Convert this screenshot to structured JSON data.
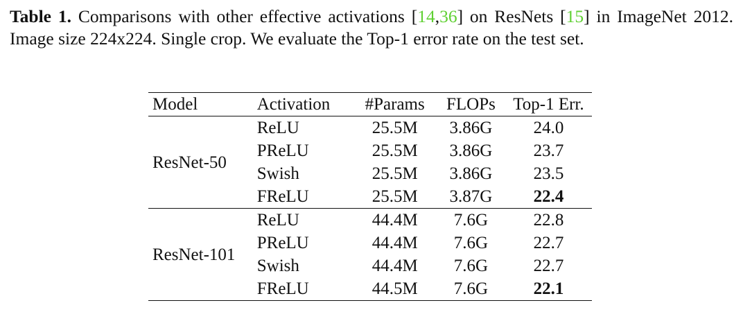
{
  "caption": {
    "label": "Table 1.",
    "text_1": " Comparisons with other effective activations [",
    "cite_a": "14",
    "cite_sep": ",",
    "cite_b": "36",
    "text_2": "] on ResNets [",
    "cite_c": "15",
    "text_3": "] in ImageNet 2012. Image size 224x224. Single crop. We evaluate the Top-1 error rate on the test set."
  },
  "table": {
    "headers": [
      "Model",
      "Activation",
      "#Params",
      "FLOPs",
      "Top-1 Err."
    ],
    "groups": [
      {
        "model": "ResNet-50",
        "rows": [
          {
            "activation": "ReLU",
            "params": "25.5M",
            "flops": "3.86G",
            "err": "24.0",
            "bold": false
          },
          {
            "activation": "PReLU",
            "params": "25.5M",
            "flops": "3.86G",
            "err": "23.7",
            "bold": false
          },
          {
            "activation": "Swish",
            "params": "25.5M",
            "flops": "3.86G",
            "err": "23.5",
            "bold": false
          },
          {
            "activation": "FReLU",
            "params": "25.5M",
            "flops": "3.87G",
            "err": "22.4",
            "bold": true
          }
        ]
      },
      {
        "model": "ResNet-101",
        "rows": [
          {
            "activation": "ReLU",
            "params": "44.4M",
            "flops": "7.6G",
            "err": "22.8",
            "bold": false
          },
          {
            "activation": "PReLU",
            "params": "44.4M",
            "flops": "7.6G",
            "err": "22.7",
            "bold": false
          },
          {
            "activation": "Swish",
            "params": "44.4M",
            "flops": "7.6G",
            "err": "22.7",
            "bold": false
          },
          {
            "activation": "FReLU",
            "params": "44.5M",
            "flops": "7.6G",
            "err": "22.1",
            "bold": true
          }
        ]
      }
    ]
  },
  "colors": {
    "citation": "#5fd032",
    "text": "#111111"
  }
}
